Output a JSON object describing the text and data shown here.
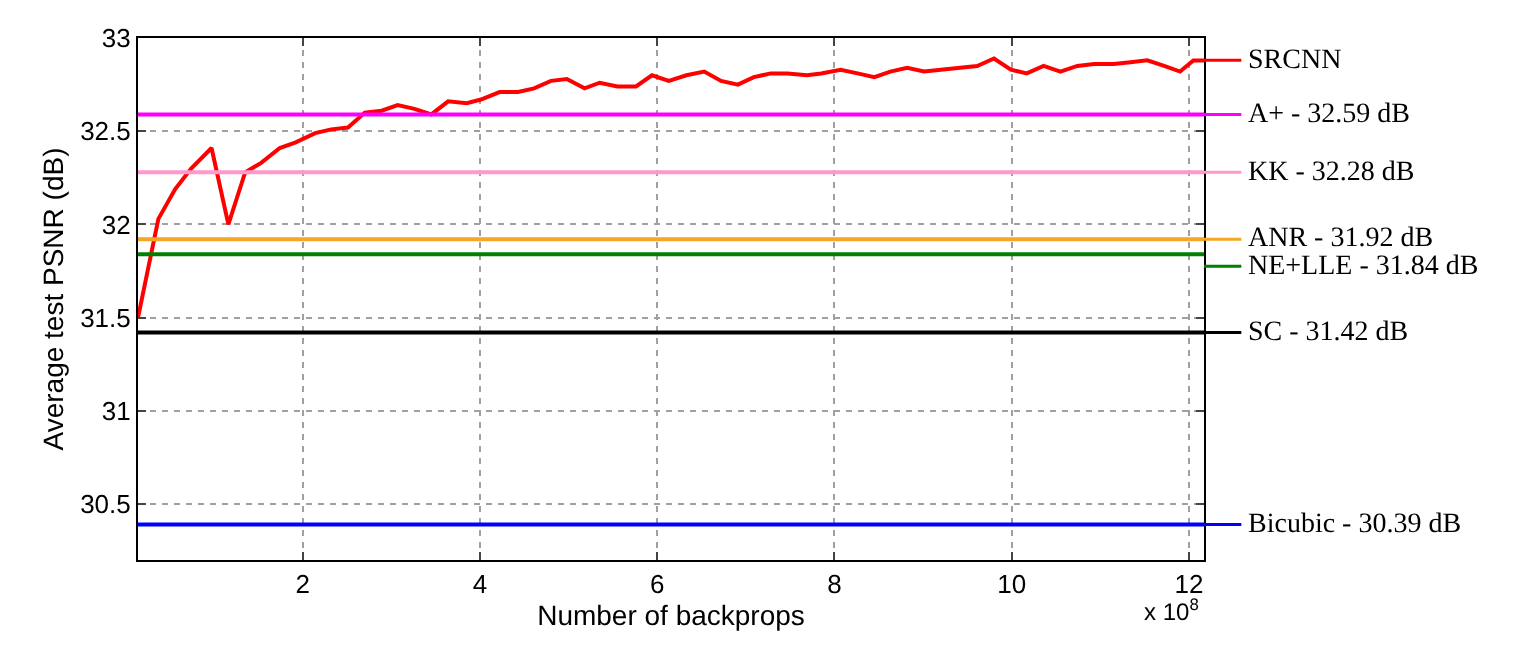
{
  "chart_data": {
    "type": "line",
    "xlabel": "Number of backprops",
    "ylabel": "Average test PSNR (dB)",
    "annotations": [
      "x 10$^{8}$"
    ],
    "xlim": [
      0.14,
      12.17
    ],
    "xticks": [
      2,
      4,
      6,
      8,
      10,
      12
    ],
    "ylim": [
      30.2,
      33
    ],
    "yticks": [
      30.5,
      31,
      31.5,
      32,
      32.5,
      33
    ],
    "grid": true,
    "legend": "right",
    "marker": "none",
    "line_style": "solid",
    "series": [
      {
        "name": "SRCNN",
        "color": "#ff0000",
        "x": [
          0.14,
          0.37,
          0.56,
          0.74,
          0.97,
          1.16,
          1.35,
          1.53,
          1.74,
          1.92,
          2.14,
          2.32,
          2.51,
          2.7,
          2.89,
          3.07,
          3.26,
          3.45,
          3.64,
          3.85,
          4.01,
          4.22,
          4.43,
          4.61,
          4.8,
          4.98,
          5.18,
          5.35,
          5.55,
          5.76,
          5.94,
          6.13,
          6.33,
          6.53,
          6.72,
          6.91,
          7.09,
          7.28,
          7.47,
          7.69,
          7.85,
          8.07,
          8.26,
          8.45,
          8.63,
          8.82,
          9.01,
          9.2,
          9.42,
          9.61,
          9.8,
          9.99,
          10.17,
          10.36,
          10.55,
          10.74,
          10.93,
          11.15,
          11.34,
          11.53,
          11.72,
          11.9,
          12.05,
          12.17
        ],
        "values": [
          31.5,
          32.03,
          32.19,
          32.3,
          32.41,
          32.0,
          32.28,
          32.33,
          32.41,
          32.44,
          32.49,
          32.51,
          32.52,
          32.6,
          32.61,
          32.64,
          32.62,
          32.59,
          32.66,
          32.65,
          32.67,
          32.71,
          32.71,
          32.73,
          32.77,
          32.78,
          32.73,
          32.76,
          32.74,
          32.74,
          32.8,
          32.77,
          32.8,
          32.82,
          32.77,
          32.75,
          32.79,
          32.81,
          32.81,
          32.8,
          32.81,
          32.83,
          32.81,
          32.79,
          32.82,
          32.84,
          32.82,
          32.83,
          32.84,
          32.85,
          32.89,
          32.83,
          32.81,
          32.85,
          32.82,
          32.85,
          32.86,
          32.86,
          32.87,
          32.88,
          32.85,
          32.82,
          32.88,
          32.88
        ]
      }
    ],
    "ref_lines": [
      {
        "axis": "y",
        "value": 32.59,
        "label": "A+ - 32.59 dB",
        "color": "#ff00ff"
      },
      {
        "axis": "y",
        "value": 32.28,
        "label": "KK - 32.28 dB",
        "color": "#ff99cc"
      },
      {
        "axis": "y",
        "value": 31.92,
        "label": "ANR - 31.92 dB",
        "color": "#f5a623"
      },
      {
        "axis": "y",
        "value": 31.84,
        "label": "NE+LLE - 31.84 dB",
        "color": "#008000"
      },
      {
        "axis": "y",
        "value": 31.42,
        "label": "SC - 31.42 dB",
        "color": "#000000"
      },
      {
        "axis": "y",
        "value": 30.39,
        "label": "Bicubic - 30.39 dB",
        "color": "#0000ff"
      }
    ]
  }
}
